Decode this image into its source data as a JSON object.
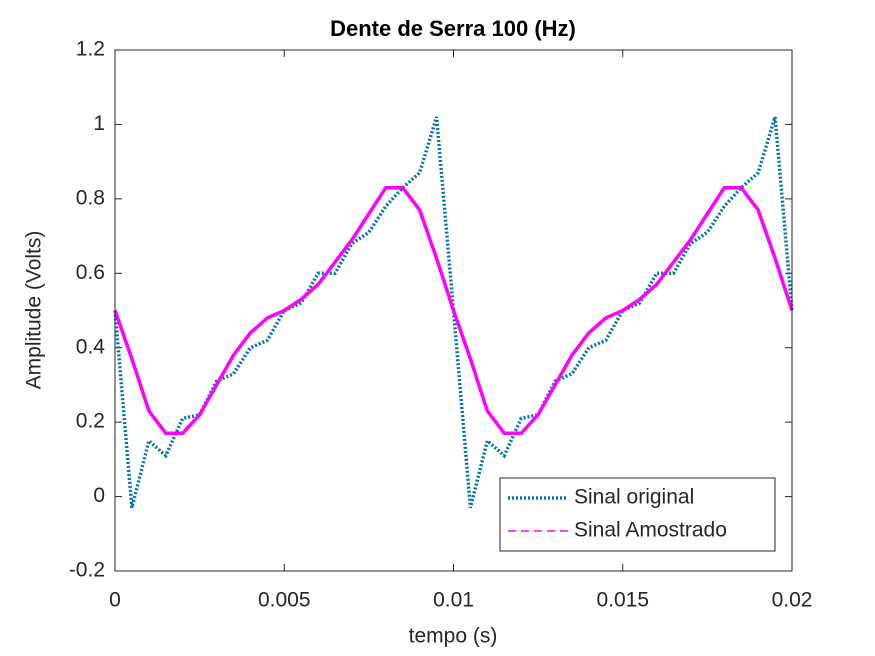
{
  "chart_data": {
    "type": "line",
    "title": "Dente de Serra 100 (Hz)",
    "x_label": "tempo (s)",
    "y_label": "Amplitude (Volts)",
    "x": [
      0,
      0.0005,
      0.001,
      0.0015,
      0.002,
      0.0025,
      0.003,
      0.0035,
      0.004,
      0.0045,
      0.005,
      0.0055,
      0.006,
      0.0065,
      0.007,
      0.0075,
      0.008,
      0.0085,
      0.009,
      0.0095,
      0.01,
      0.0105,
      0.011,
      0.0115,
      0.012,
      0.0125,
      0.013,
      0.0135,
      0.014,
      0.0145,
      0.015,
      0.0155,
      0.016,
      0.0165,
      0.017,
      0.0175,
      0.018,
      0.0185,
      0.019,
      0.0195,
      0.02
    ],
    "series": [
      {
        "name": "Sinal original",
        "color": "#0072bd",
        "style": "dotted",
        "values": [
          0.5,
          -0.03,
          0.15,
          0.11,
          0.21,
          0.22,
          0.31,
          0.33,
          0.4,
          0.42,
          0.5,
          0.52,
          0.6,
          0.6,
          0.68,
          0.71,
          0.78,
          0.83,
          0.87,
          1.02,
          0.5,
          -0.03,
          0.15,
          0.11,
          0.21,
          0.22,
          0.31,
          0.33,
          0.4,
          0.42,
          0.5,
          0.52,
          0.6,
          0.6,
          0.68,
          0.71,
          0.78,
          0.83,
          0.87,
          1.02,
          0.5
        ]
      },
      {
        "name": "Sinal Amostrado",
        "color": "#ff00ff",
        "style": "solid",
        "values": [
          0.5,
          0.37,
          0.23,
          0.17,
          0.17,
          0.22,
          0.3,
          0.38,
          0.44,
          0.48,
          0.5,
          0.53,
          0.57,
          0.63,
          0.69,
          0.76,
          0.83,
          0.83,
          0.77,
          0.64,
          0.5,
          0.37,
          0.23,
          0.17,
          0.17,
          0.22,
          0.3,
          0.38,
          0.44,
          0.48,
          0.5,
          0.53,
          0.57,
          0.63,
          0.69,
          0.76,
          0.83,
          0.83,
          0.77,
          0.64,
          0.5
        ]
      }
    ],
    "xlim": [
      0,
      0.02
    ],
    "xticks": [
      0,
      0.005,
      0.01,
      0.015,
      0.02
    ],
    "ylim": [
      -0.2,
      1.2
    ],
    "yticks": [
      -0.2,
      0,
      0.2,
      0.4,
      0.6,
      0.8,
      1,
      1.2
    ],
    "legend": "lower-right"
  }
}
